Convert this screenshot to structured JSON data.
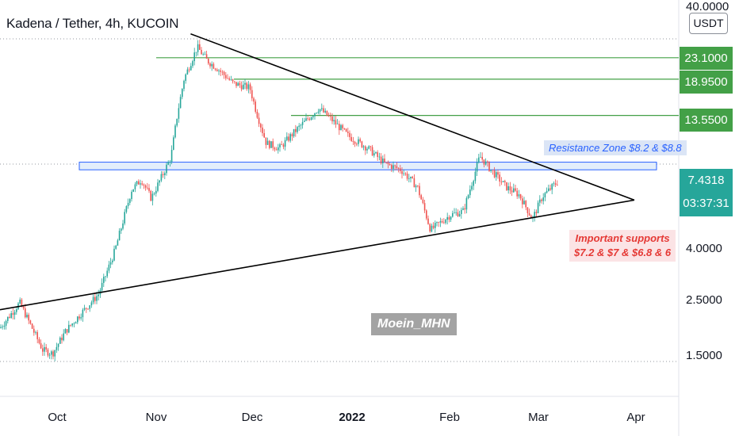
{
  "title": "Kadena / Tether, 4h, KUCOIN",
  "currency": "USDT",
  "price_axis": {
    "labels": [
      "40.0000",
      "4.0000",
      "2.5000",
      "1.5000"
    ]
  },
  "level_badges": [
    "23.1000",
    "18.9500",
    "13.5500"
  ],
  "current": {
    "price": "7.4318",
    "countdown": "03:37:31"
  },
  "annotations": {
    "resistance": "Resistance Zone $8.2 & $8.8",
    "support_line1": "Important supports",
    "support_line2": "$7.2 & $7 & $6.8 & 6"
  },
  "watermark": "Moein_MHN",
  "colors": {
    "up": "#26a69a",
    "down": "#ef5350",
    "level": "#43a047",
    "zone": "#2962ff"
  },
  "chart_data": {
    "type": "candlestick",
    "symbol": "KDA/USDT",
    "interval": "4h",
    "scale": "log",
    "y_range": [
      1.2,
      40
    ],
    "x_ticks": [
      "Oct",
      "Nov",
      "Dec",
      "2022",
      "Feb",
      "Mar",
      "Apr"
    ],
    "price_path": [
      [
        "2021-09-15",
        1.9
      ],
      [
        "2021-09-21",
        2.4
      ],
      [
        "2021-09-28",
        1.55
      ],
      [
        "2021-10-01",
        1.5
      ],
      [
        "2021-10-05",
        1.85
      ],
      [
        "2021-10-10",
        2.2
      ],
      [
        "2021-10-15",
        2.6
      ],
      [
        "2021-10-20",
        3.9
      ],
      [
        "2021-10-25",
        6.8
      ],
      [
        "2021-10-28",
        7.5
      ],
      [
        "2021-10-31",
        6.3
      ],
      [
        "2021-11-03",
        7.6
      ],
      [
        "2021-11-06",
        9.2
      ],
      [
        "2021-11-08",
        13.8
      ],
      [
        "2021-11-10",
        19.0
      ],
      [
        "2021-11-14",
        25.5
      ],
      [
        "2021-11-17",
        22.5
      ],
      [
        "2021-11-20",
        21.0
      ],
      [
        "2021-11-25",
        18.2
      ],
      [
        "2021-11-30",
        17.5
      ],
      [
        "2021-12-02",
        14.0
      ],
      [
        "2021-12-05",
        10.5
      ],
      [
        "2021-12-09",
        10.0
      ],
      [
        "2021-12-14",
        11.8
      ],
      [
        "2021-12-21",
        14.5
      ],
      [
        "2021-12-25",
        13.0
      ],
      [
        "2021-12-30",
        11.2
      ],
      [
        "2022-01-05",
        10.0
      ],
      [
        "2022-01-10",
        8.7
      ],
      [
        "2022-01-15",
        8.2
      ],
      [
        "2022-01-20",
        7.0
      ],
      [
        "2022-01-24",
        4.7
      ],
      [
        "2022-01-30",
        5.4
      ],
      [
        "2022-02-03",
        5.6
      ],
      [
        "2022-02-08",
        9.3
      ],
      [
        "2022-02-11",
        8.3
      ],
      [
        "2022-02-16",
        7.0
      ],
      [
        "2022-02-20",
        6.5
      ],
      [
        "2022-02-24",
        5.2
      ],
      [
        "2022-02-27",
        6.4
      ],
      [
        "2022-03-04",
        7.43
      ]
    ],
    "horizontal_levels": [
      23.1,
      18.95,
      13.55
    ],
    "resistance_zone": [
      8.2,
      8.8
    ],
    "supports": [
      7.2,
      7,
      6.8,
      6
    ],
    "trendlines": {
      "descending": [
        [
          "2021-11-12",
          28.8
        ],
        [
          "2022-03-27",
          6.2
        ]
      ],
      "ascending": [
        [
          "2021-09-15",
          2.25
        ],
        [
          "2022-03-27",
          6.2
        ]
      ]
    },
    "last_price": 7.4318
  }
}
